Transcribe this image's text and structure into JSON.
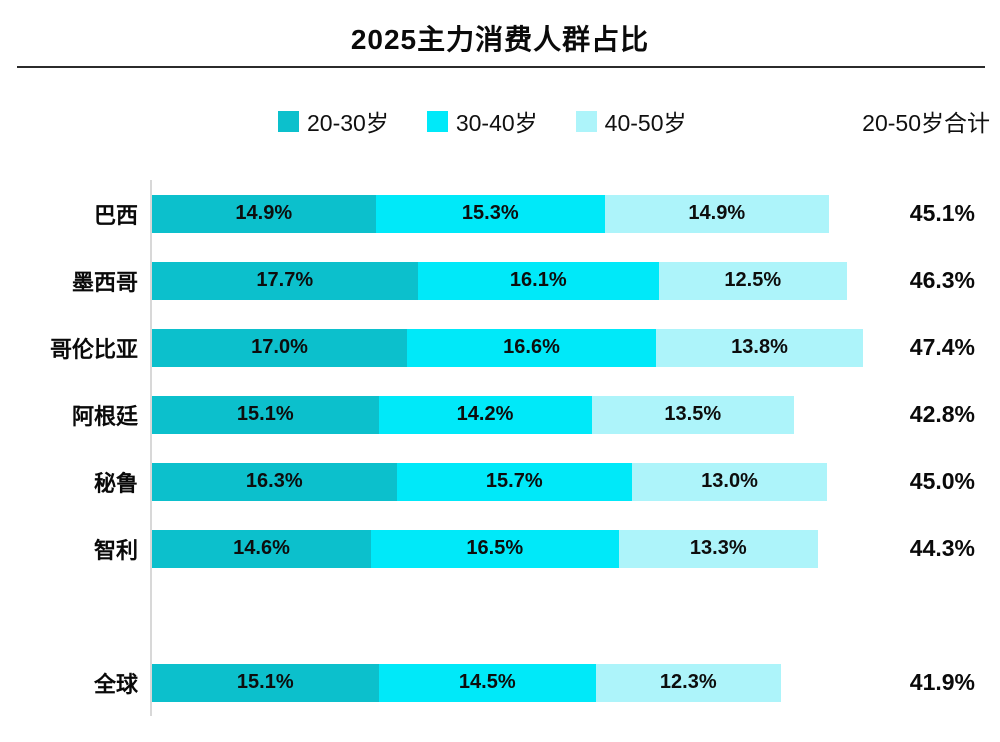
{
  "title": "2025主力消费人群占比",
  "colors": {
    "series": [
      "#0CC0CC",
      "#00E9F9",
      "#ADF4FA"
    ],
    "axis_line": "#D8D8D8",
    "divider": "#2B2B2B",
    "text": "#111111"
  },
  "chart_data": {
    "type": "bar",
    "orientation": "horizontal",
    "stacked": true,
    "title": "2025主力消费人群占比",
    "categories": [
      "巴西",
      "墨西哥",
      "哥伦比亚",
      "阿根廷",
      "秘鲁",
      "智利",
      "全球"
    ],
    "series": [
      {
        "name": "20-30岁",
        "color": "#0CC0CC",
        "values": [
          14.9,
          17.7,
          17.0,
          15.1,
          16.3,
          14.6,
          15.1
        ]
      },
      {
        "name": "30-40岁",
        "color": "#00E9F9",
        "values": [
          15.3,
          16.1,
          16.6,
          14.2,
          15.7,
          16.5,
          14.5
        ]
      },
      {
        "name": "40-50岁",
        "color": "#ADF4FA",
        "values": [
          14.9,
          12.5,
          13.8,
          13.5,
          13.0,
          13.3,
          12.3
        ]
      }
    ],
    "totals": {
      "label": "20-50岁合计",
      "values": [
        45.1,
        46.3,
        47.4,
        42.8,
        45.0,
        44.3,
        41.9
      ]
    },
    "value_suffix": "%",
    "legend_position": "top",
    "grid": false,
    "separator_gap_before_category": "全球",
    "segment_labels_inside": true
  }
}
